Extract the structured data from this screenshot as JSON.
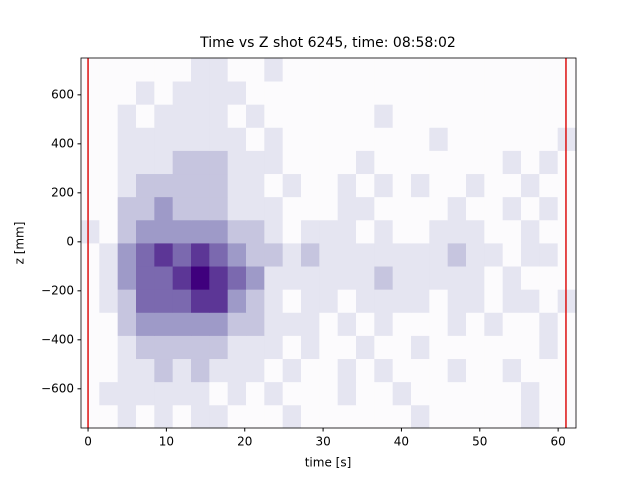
{
  "chart_data": {
    "type": "hist2d",
    "title": "Time vs Z shot 6245, time: 08:58:02",
    "xlabel": "time [s]",
    "ylabel": "z [mm]",
    "xlim": [
      -0.9,
      62.28
    ],
    "ylim": [
      -760,
      750.4
    ],
    "xticks": [
      0,
      10,
      20,
      30,
      40,
      50,
      60
    ],
    "yticks": [
      {
        "value": -600,
        "label": "−600"
      },
      {
        "value": -400,
        "label": "−400"
      },
      {
        "value": -200,
        "label": "−200"
      },
      0,
      200,
      400,
      600
    ],
    "colormap": [
      "#fcfbfd",
      "#dadaeb",
      "#9e9ac8",
      "#6a51a3",
      "#3f007d"
    ],
    "vlines": [
      0,
      61
    ],
    "vline_color": "#dd1111",
    "xbins": [
      -0.9,
      1.44,
      3.78,
      6.12,
      8.46,
      10.8,
      13.14,
      15.48,
      17.82,
      20.16,
      22.5,
      24.84,
      27.18,
      29.52,
      31.86,
      34.2,
      36.54,
      38.88,
      41.22,
      43.56,
      45.9,
      48.24,
      50.58,
      52.92,
      55.26,
      57.6,
      59.94,
      62.28
    ],
    "zbins": [
      -760,
      -665.6,
      -571.2,
      -476.8,
      -382.4,
      -288,
      -193.6,
      -99.2,
      -4.8,
      89.6,
      184,
      278.4,
      372.8,
      467.2,
      561.6,
      656,
      750.4
    ],
    "counts": [
      [
        0,
        0,
        1,
        0,
        1,
        0,
        1,
        1,
        0,
        0,
        0,
        1,
        0,
        0,
        0,
        0,
        0,
        0,
        1,
        0,
        0,
        0,
        0,
        0,
        1,
        0,
        0
      ],
      [
        0,
        1,
        1,
        1,
        1,
        1,
        1,
        0,
        1,
        0,
        1,
        0,
        0,
        0,
        1,
        0,
        0,
        1,
        0,
        0,
        0,
        0,
        0,
        0,
        1,
        0,
        0
      ],
      [
        0,
        0,
        1,
        1,
        2,
        1,
        2,
        1,
        1,
        1,
        0,
        1,
        0,
        0,
        1,
        0,
        1,
        0,
        0,
        0,
        1,
        0,
        0,
        1,
        0,
        0,
        0
      ],
      [
        0,
        0,
        1,
        2,
        2,
        2,
        2,
        2,
        1,
        1,
        1,
        0,
        1,
        0,
        0,
        1,
        0,
        0,
        1,
        0,
        0,
        0,
        0,
        0,
        0,
        1,
        0
      ],
      [
        0,
        0,
        2,
        3,
        3,
        3,
        3,
        3,
        2,
        2,
        1,
        1,
        1,
        0,
        1,
        0,
        1,
        0,
        0,
        0,
        1,
        0,
        1,
        0,
        0,
        1,
        0
      ],
      [
        0,
        1,
        2,
        4,
        4,
        4,
        5,
        5,
        3,
        2,
        1,
        0,
        1,
        1,
        0,
        1,
        1,
        1,
        1,
        0,
        1,
        1,
        0,
        1,
        1,
        0,
        1
      ],
      [
        0,
        1,
        3,
        4,
        4,
        5,
        6,
        5,
        4,
        3,
        1,
        1,
        1,
        1,
        1,
        1,
        2,
        1,
        1,
        1,
        1,
        1,
        0,
        1,
        0,
        0,
        0
      ],
      [
        0,
        1,
        3,
        4,
        5,
        4,
        5,
        4,
        3,
        2,
        2,
        1,
        2,
        1,
        1,
        1,
        1,
        1,
        1,
        1,
        2,
        1,
        1,
        0,
        1,
        1,
        0
      ],
      [
        1,
        0,
        2,
        3,
        3,
        3,
        3,
        3,
        2,
        2,
        1,
        0,
        1,
        1,
        1,
        0,
        1,
        0,
        0,
        1,
        1,
        1,
        0,
        0,
        1,
        0,
        0
      ],
      [
        0,
        0,
        2,
        2,
        3,
        2,
        2,
        2,
        1,
        1,
        1,
        0,
        0,
        0,
        1,
        1,
        0,
        0,
        0,
        0,
        1,
        0,
        0,
        1,
        0,
        1,
        0
      ],
      [
        0,
        0,
        1,
        2,
        2,
        2,
        2,
        2,
        1,
        1,
        0,
        1,
        0,
        0,
        1,
        0,
        1,
        0,
        1,
        0,
        0,
        1,
        0,
        0,
        1,
        0,
        0
      ],
      [
        0,
        0,
        1,
        1,
        1,
        2,
        2,
        2,
        1,
        1,
        1,
        0,
        0,
        0,
        0,
        1,
        0,
        0,
        0,
        0,
        0,
        0,
        0,
        1,
        0,
        1,
        0
      ],
      [
        0,
        0,
        1,
        1,
        1,
        1,
        1,
        1,
        1,
        0,
        1,
        0,
        0,
        0,
        0,
        0,
        0,
        0,
        0,
        1,
        0,
        0,
        0,
        0,
        0,
        0,
        1
      ],
      [
        0,
        0,
        1,
        0,
        1,
        1,
        1,
        1,
        0,
        1,
        0,
        0,
        0,
        0,
        0,
        0,
        1,
        0,
        0,
        0,
        0,
        0,
        0,
        0,
        0,
        0,
        0
      ],
      [
        0,
        0,
        0,
        1,
        0,
        1,
        1,
        1,
        1,
        0,
        0,
        0,
        0,
        0,
        0,
        0,
        0,
        0,
        0,
        0,
        0,
        0,
        0,
        0,
        0,
        0,
        0
      ],
      [
        0,
        0,
        0,
        0,
        0,
        0,
        1,
        1,
        0,
        0,
        1,
        0,
        0,
        0,
        0,
        0,
        0,
        0,
        0,
        0,
        0,
        0,
        0,
        0,
        0,
        0,
        0
      ]
    ]
  }
}
